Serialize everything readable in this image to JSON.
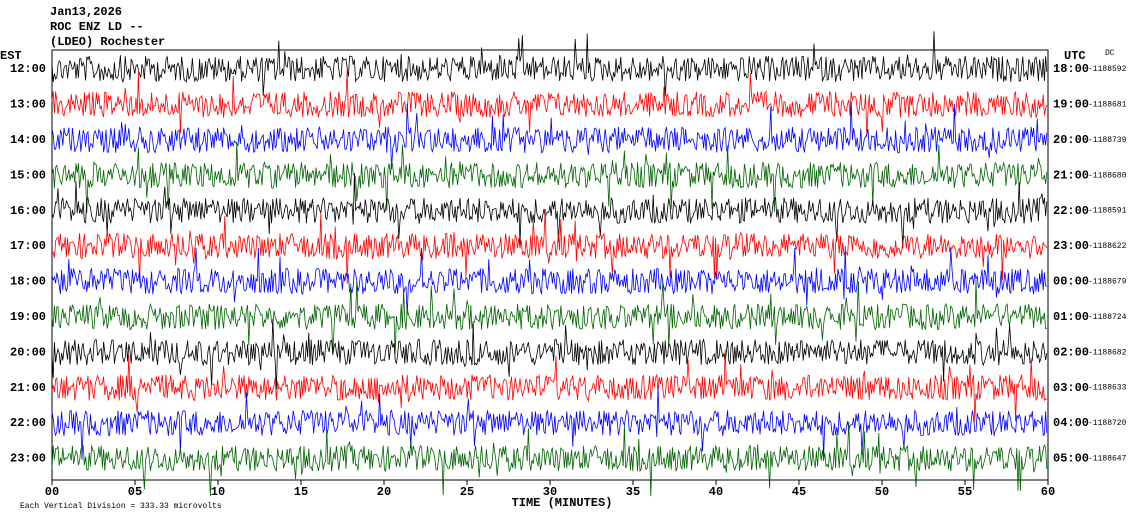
{
  "chart_data": {
    "type": "helicorder",
    "title_lines": [
      "Jan13,2026",
      "ROC ENZ LD --",
      "(LDEO) Rochester"
    ],
    "left_axis_title": "EST",
    "right_axis_title": "UTC",
    "dc_title": "DC",
    "x_label": "TIME (MINUTES)",
    "footnote": "Each Vertical Division =  333.33 microvolts",
    "xlim": [
      0,
      60
    ],
    "xticks": [
      {
        "value": 0,
        "label": "00"
      },
      {
        "value": 5,
        "label": "05"
      },
      10,
      15,
      20,
      25,
      30,
      35,
      40,
      45,
      50,
      55,
      60
    ],
    "rows": [
      {
        "est": "12:00",
        "utc": "18:00",
        "dc": "-1188592",
        "color": "#000000"
      },
      {
        "est": "13:00",
        "utc": "19:00",
        "dc": "-1188681",
        "color": "#ff0000"
      },
      {
        "est": "14:00",
        "utc": "20:00",
        "dc": "-1188739",
        "color": "#0000ff"
      },
      {
        "est": "15:00",
        "utc": "21:00",
        "dc": "-1188680",
        "color": "#006400"
      },
      {
        "est": "16:00",
        "utc": "22:00",
        "dc": "-1188591",
        "color": "#000000"
      },
      {
        "est": "17:00",
        "utc": "23:00",
        "dc": "-1188622",
        "color": "#ff0000"
      },
      {
        "est": "18:00",
        "utc": "00:00",
        "dc": "-1188679",
        "color": "#0000ff"
      },
      {
        "est": "19:00",
        "utc": "01:00",
        "dc": "-1188724",
        "color": "#006400"
      },
      {
        "est": "20:00",
        "utc": "02:00",
        "dc": "-1188682",
        "color": "#000000"
      },
      {
        "est": "21:00",
        "utc": "03:00",
        "dc": "-1188633",
        "color": "#ff0000"
      },
      {
        "est": "22:00",
        "utc": "04:00",
        "dc": "-1188720",
        "color": "#0000ff"
      },
      {
        "est": "23:00",
        "utc": "05:00",
        "dc": "-1188647",
        "color": "#006400"
      }
    ]
  }
}
